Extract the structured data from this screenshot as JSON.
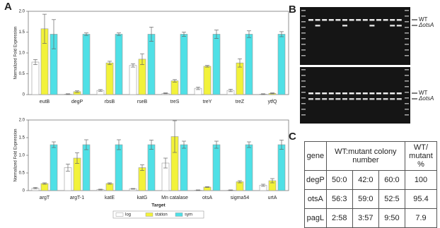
{
  "panel_labels": [
    "A",
    "B",
    "C"
  ],
  "chart_data": [
    {
      "type": "bar",
      "ylabel": "Normalized Fold Expression",
      "categories": [
        "eutB",
        "degP",
        "rbsB",
        "rseB",
        "treS",
        "treY",
        "treZ",
        "ytfQ"
      ],
      "ylim": [
        0,
        2
      ],
      "yticks": [
        0,
        0.5,
        {
          "value": 1,
          "label": "1.0"
        },
        1.5,
        {
          "value": 2,
          "label": "2.0"
        }
      ],
      "series": [
        {
          "color": "#ffffff",
          "values": [
            0.78,
            0.01,
            0.1,
            0.7,
            0.03,
            0.15,
            0.1,
            0.01
          ],
          "errors": [
            0.06,
            0.01,
            0.02,
            0.04,
            0.01,
            0.03,
            0.03,
            0.01
          ]
        },
        {
          "color": "#f2f23a",
          "values": [
            1.58,
            0.07,
            0.76,
            0.85,
            0.33,
            0.68,
            0.76,
            0.03
          ],
          "errors": [
            0.35,
            0.02,
            0.04,
            0.13,
            0.03,
            0.02,
            0.1,
            0.01
          ]
        },
        {
          "color": "#4fe0e6",
          "values": [
            1.45,
            1.45,
            1.45,
            1.45,
            1.45,
            1.45,
            1.45,
            1.45
          ],
          "errors": [
            0.35,
            0.03,
            0.03,
            0.17,
            0.05,
            0.1,
            0.08,
            0.06
          ]
        }
      ]
    },
    {
      "type": "bar",
      "ylabel": "Normalized Fold Expression",
      "xlabel": "Target",
      "legend": "bottom",
      "categories": [
        "argT",
        "argT-1",
        "katE",
        "katG",
        "Mn catalase",
        "otsA",
        "sigma54",
        "urtA"
      ],
      "ylim": [
        0,
        2
      ],
      "yticks": [
        0,
        0.5,
        {
          "value": 1,
          "label": "1.0"
        },
        1.5,
        {
          "value": 2,
          "label": "2.0"
        }
      ],
      "series": [
        {
          "name": "log",
          "color": "#ffffff",
          "values": [
            0.07,
            0.65,
            0.03,
            0.05,
            0.78,
            0.01,
            0.01,
            0.15
          ],
          "errors": [
            0.02,
            0.1,
            0.01,
            0.01,
            0.14,
            0.01,
            0.01,
            0.03
          ]
        },
        {
          "name": "station",
          "color": "#f2f23a",
          "values": [
            0.2,
            0.92,
            0.2,
            0.65,
            1.53,
            0.1,
            0.25,
            0.28
          ],
          "errors": [
            0.02,
            0.15,
            0.02,
            0.08,
            0.45,
            0.01,
            0.03,
            0.06
          ]
        },
        {
          "name": "sym",
          "color": "#4fe0e6",
          "values": [
            1.3,
            1.3,
            1.3,
            1.3,
            1.3,
            1.3,
            1.3,
            1.3
          ],
          "errors": [
            0.08,
            0.14,
            0.14,
            0.13,
            0.1,
            0.1,
            0.08,
            0.13
          ]
        }
      ]
    }
  ],
  "gel": {
    "labels": [
      "WT",
      "ΔotsA",
      "WT",
      "ΔotsA"
    ]
  },
  "table": {
    "header": [
      "gene",
      "WT:mutant colony number",
      "WT/ mutant %"
    ],
    "rows": [
      [
        "degP",
        "50:0",
        "42:0",
        "60:0",
        100
      ],
      [
        "otsA",
        "56:3",
        "59:0",
        "52:5",
        95.4
      ],
      [
        "pagL",
        "2:58",
        "3:57",
        "9:50",
        7.9
      ]
    ]
  }
}
